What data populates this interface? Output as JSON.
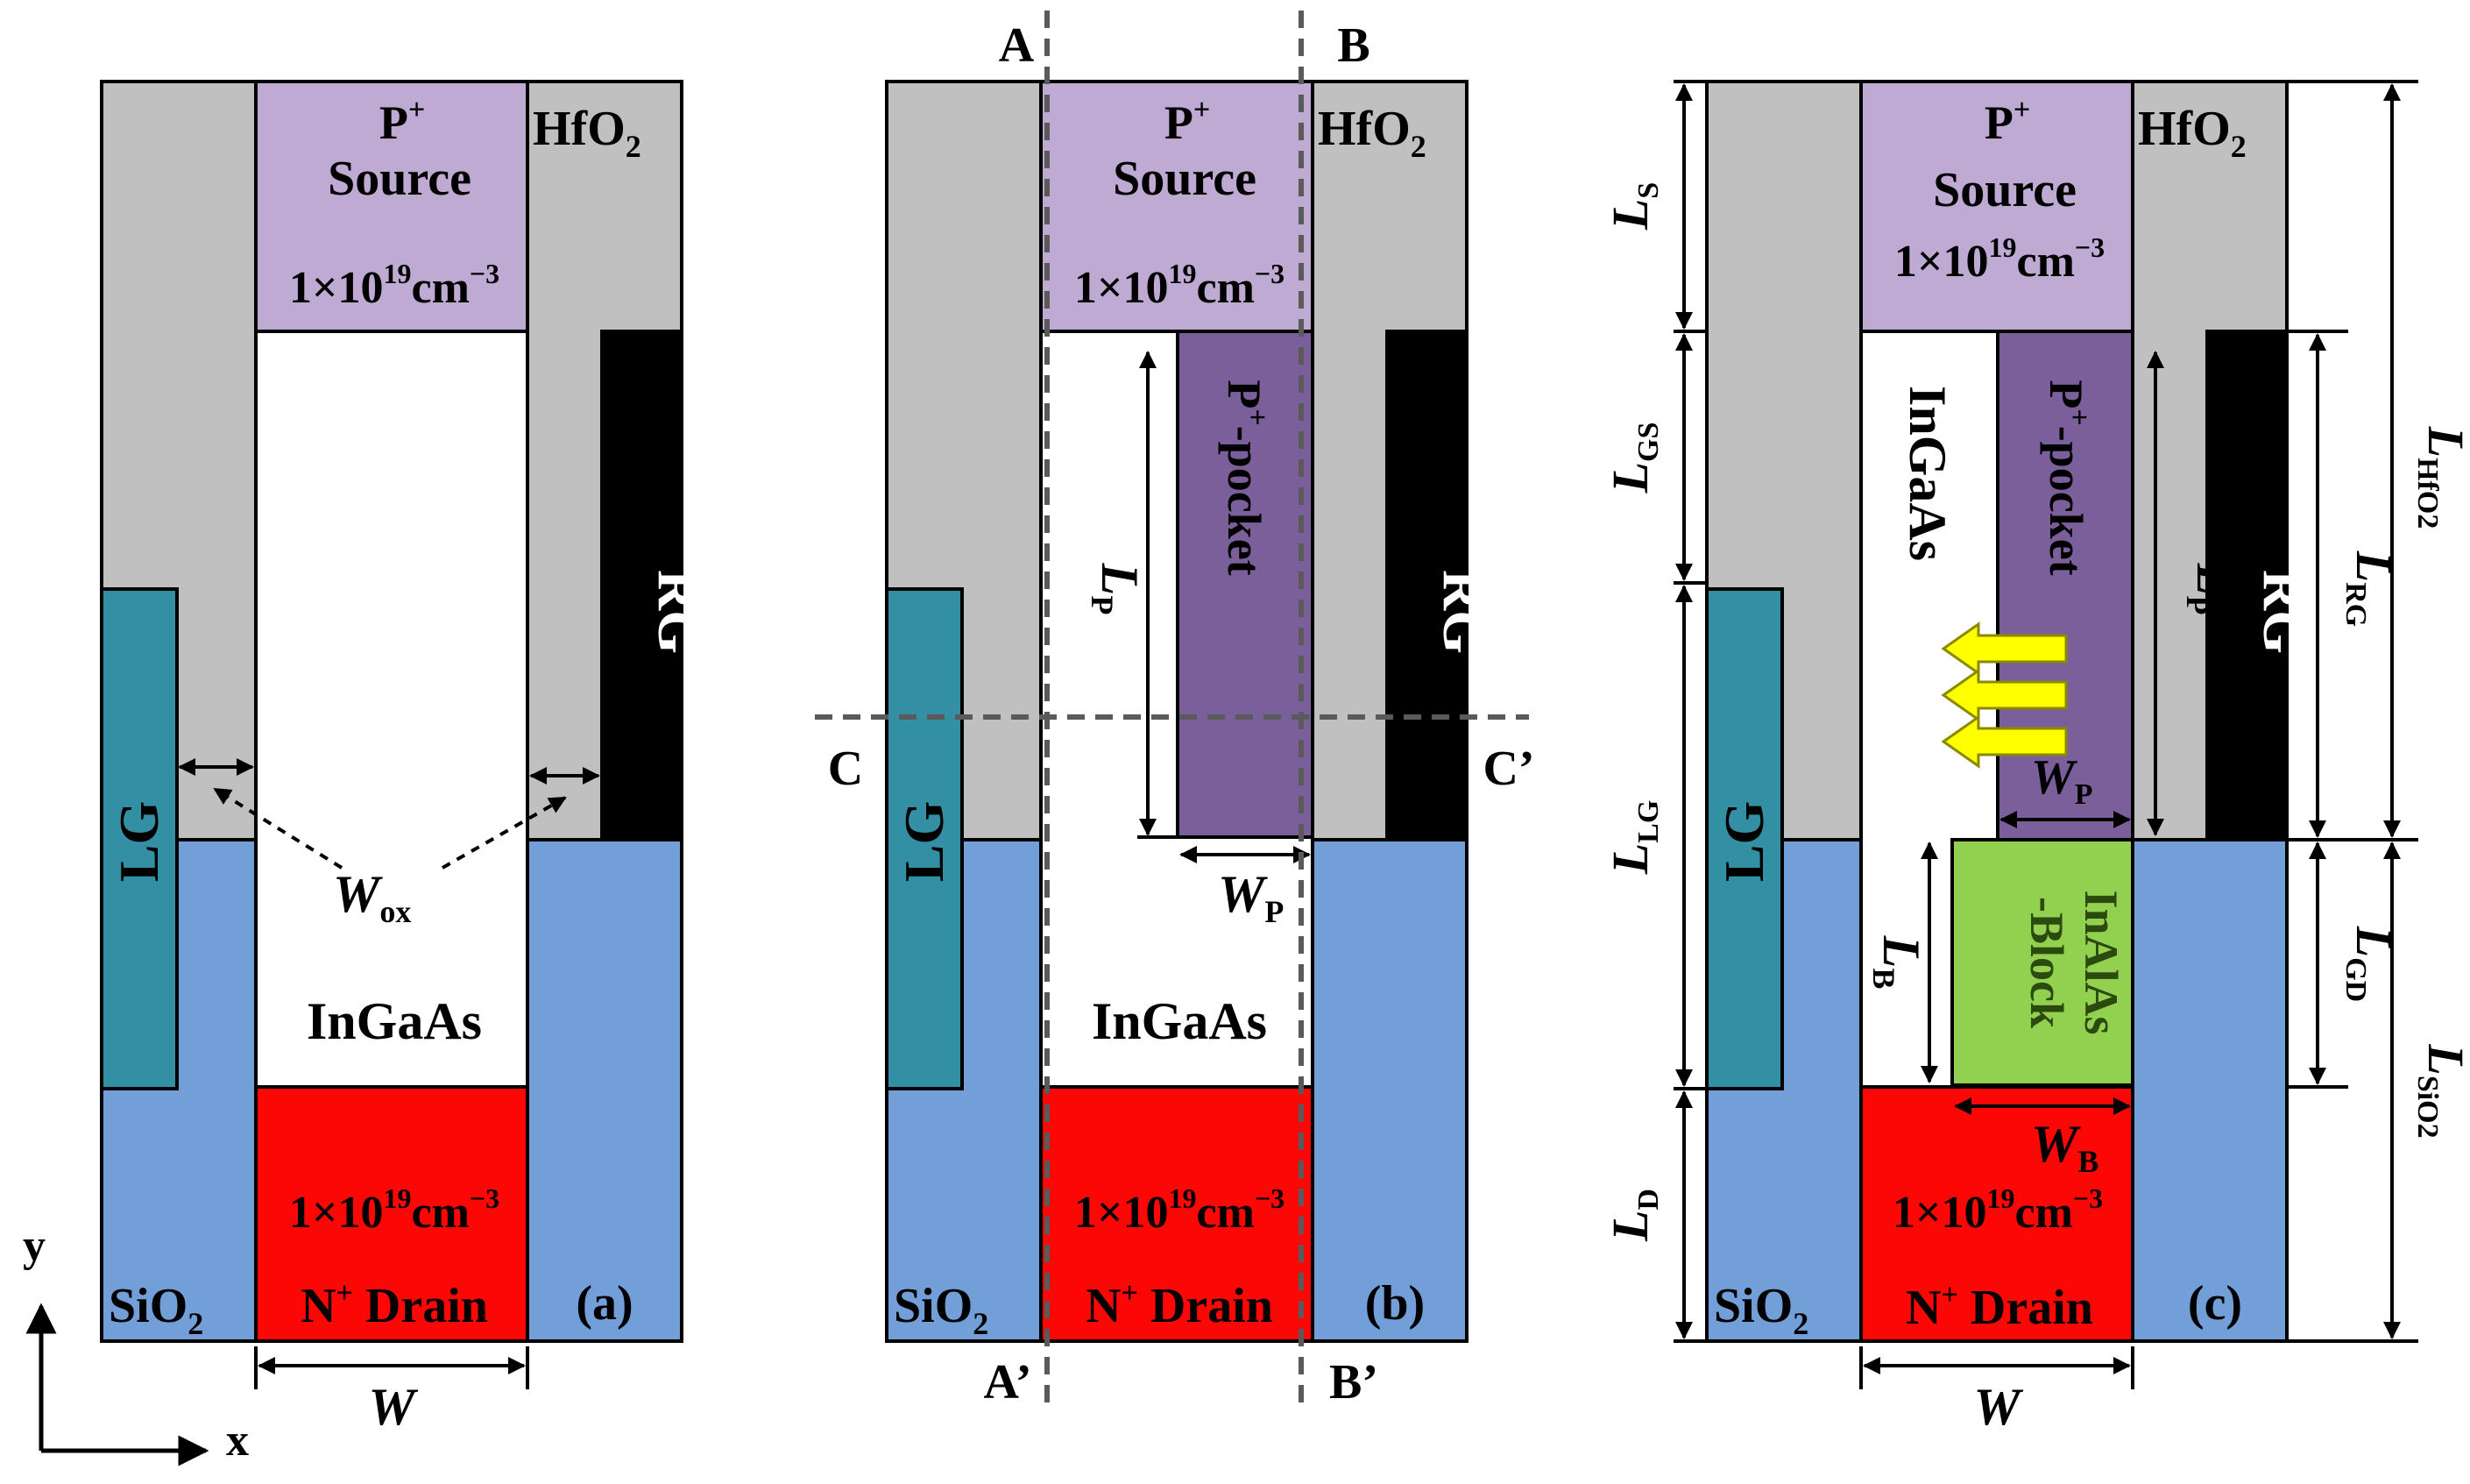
{
  "colors": {
    "hfo2": "#c0c0c0",
    "sio2": "#729fd7",
    "source": "#bfaad4",
    "drain": "#fd0606",
    "ingaas": "#ffffff",
    "lg": "#338fa3",
    "rg": "#000000",
    "pocket": "#7b5f9b",
    "block": "#92d050",
    "arrow": "#ffff00",
    "line": "#000000",
    "dash": "#5a5a5a"
  },
  "axes": {
    "y": "y",
    "x": "x"
  },
  "panels": [
    {
      "tag": "(a)",
      "source_label": "P",
      "source_sup": "+",
      "source_word": "Source",
      "source_doping": "1×10",
      "source_doping_exp": "19",
      "source_doping_unit": "cm",
      "source_doping_unit_exp": "−3",
      "hfo2_label": "HfO",
      "hfo2_sub": "2",
      "sio2_label": "SiO",
      "sio2_sub": "2",
      "channel_label": "InGaAs",
      "drain_doping": "1×10",
      "drain_doping_exp": "19",
      "drain_doping_unit": "cm",
      "drain_doping_unit_exp": "−3",
      "drain_label": "N",
      "drain_sup": "+",
      "drain_word": " Drain",
      "lg_label": "LG",
      "rg_label": "RG",
      "wox_label": "W",
      "wox_sub": "ox",
      "width_label": "W"
    },
    {
      "tag": "(b)",
      "source_label": "P",
      "source_sup": "+",
      "source_word": "Source",
      "source_doping": "1×10",
      "source_doping_exp": "19",
      "source_doping_unit": "cm",
      "source_doping_unit_exp": "−3",
      "hfo2_label": "HfO",
      "hfo2_sub": "2",
      "sio2_label": "SiO",
      "sio2_sub": "2",
      "channel_label": "InGaAs",
      "drain_doping": "1×10",
      "drain_doping_exp": "19",
      "drain_doping_unit": "cm",
      "drain_doping_unit_exp": "−3",
      "drain_label": "N",
      "drain_sup": "+",
      "drain_word": " Drain",
      "lg_label": "LG",
      "rg_label": "RG",
      "pocket_label": "P",
      "pocket_sup": "+",
      "pocket_word": "-pocket",
      "lp_label": "L",
      "lp_sub": "P",
      "wp_label": "W",
      "wp_sub": "P",
      "cut_a": "A",
      "cut_a2": "A’",
      "cut_b": "B",
      "cut_b2": "B’",
      "cut_c": "C",
      "cut_c2": "C’"
    },
    {
      "tag": "(c)",
      "source_label": "P",
      "source_sup": "+",
      "source_word": "Source",
      "source_doping": "1×10",
      "source_doping_exp": "19",
      "source_doping_unit": "cm",
      "source_doping_unit_exp": "−3",
      "hfo2_label": "HfO",
      "hfo2_sub": "2",
      "sio2_label": "SiO",
      "sio2_sub": "2",
      "channel_label": "InGaAs",
      "drain_doping": "1×10",
      "drain_doping_exp": "19",
      "drain_doping_unit": "cm",
      "drain_doping_unit_exp": "−3",
      "drain_label": "N",
      "drain_sup": "+",
      "drain_word": " Drain",
      "lg_label": "LG",
      "rg_label": "RG",
      "pocket_label": "P",
      "pocket_sup": "+",
      "pocket_word": "-pocket",
      "block_line1": "InAlAs",
      "block_line2": "-Block",
      "lp_label": "L",
      "lp_sub": "P",
      "wp_label": "W",
      "wp_sub": "P",
      "wb_label": "W",
      "wb_sub": "B",
      "lb_label": "L",
      "lb_sub": "B",
      "ls_label": "L",
      "ls_sub": "S",
      "lgs_label": "L",
      "lgs_sub": "GS",
      "llg_label": "L",
      "llg_sub": "LG",
      "ld_label": "L",
      "ld_sub": "D",
      "lrg_label": "L",
      "lrg_sub": "RG",
      "lgd_label": "L",
      "lgd_sub": "GD",
      "lhfo2_label": "L",
      "lhfo2_sub": "HfO2",
      "lsio2_label": "L",
      "lsio2_sub": "SiO2",
      "width_label": "W"
    }
  ]
}
